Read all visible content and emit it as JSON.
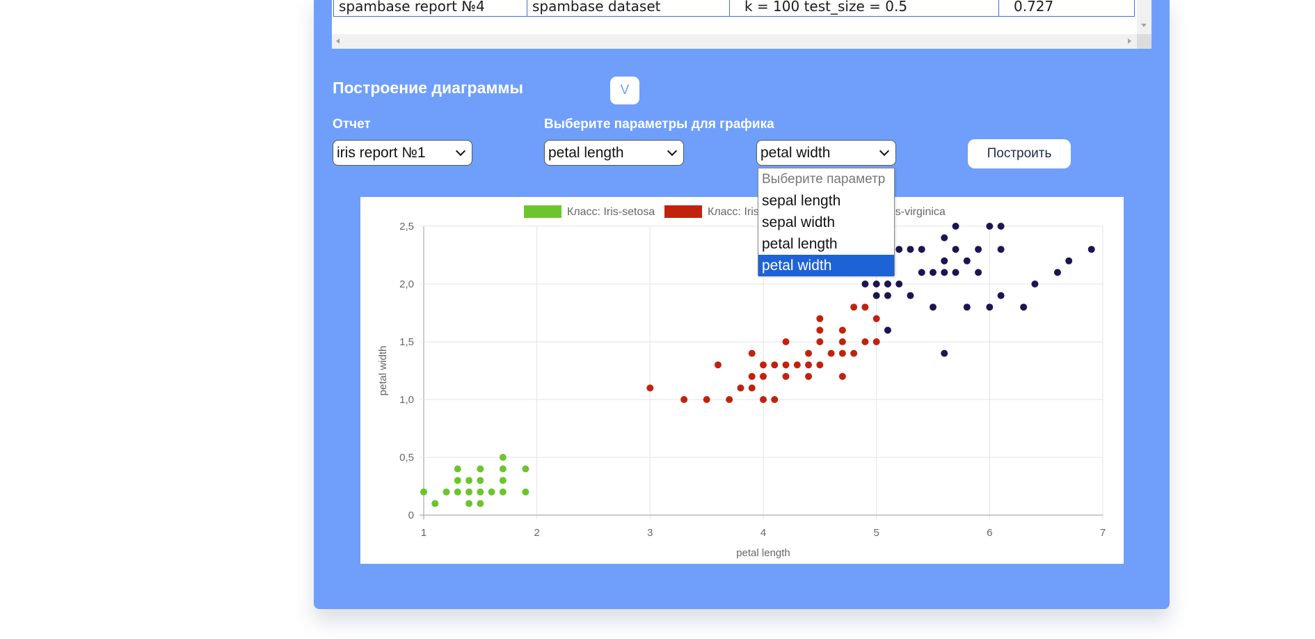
{
  "table": {
    "row": [
      "spambase report №4",
      "spambase dataset",
      "k = 100 test_size = 0.5",
      "0.727"
    ]
  },
  "plot_section": {
    "title": "Построение диаграммы",
    "toggle_label": "V",
    "report_label": "Отчет",
    "params_label": "Выберите параметры для графика",
    "report_select": "iris report №1",
    "x_select": "petal length",
    "y_select": "petal width",
    "build_button": "Построить"
  },
  "dropdown": {
    "options": [
      "Выберите параметр",
      "sepal length",
      "sepal width",
      "petal length",
      "petal width"
    ],
    "selected_index": 4
  },
  "colors": {
    "panel": "#6f9ffa",
    "setosa": "#6cc52c",
    "versicolor": "#c1220e",
    "virginica": "#1b1551"
  },
  "chart_data": {
    "type": "scatter",
    "xlabel": "petal length",
    "ylabel": "petal width",
    "xlim": [
      1,
      7
    ],
    "ylim": [
      0,
      2.5
    ],
    "x_ticks": [
      "1",
      "2",
      "3",
      "4",
      "5",
      "6",
      "7"
    ],
    "y_ticks": [
      "0",
      "0,5",
      "1,0",
      "1,5",
      "2,0",
      "2,5"
    ],
    "grid": true,
    "legend_position": "top",
    "series": [
      {
        "name": "Класс: Iris-setosa",
        "color": "#6cc52c",
        "points": [
          [
            1.0,
            0.2
          ],
          [
            1.1,
            0.1
          ],
          [
            1.2,
            0.2
          ],
          [
            1.3,
            0.2
          ],
          [
            1.3,
            0.3
          ],
          [
            1.3,
            0.4
          ],
          [
            1.4,
            0.1
          ],
          [
            1.4,
            0.2
          ],
          [
            1.4,
            0.3
          ],
          [
            1.5,
            0.1
          ],
          [
            1.5,
            0.2
          ],
          [
            1.5,
            0.3
          ],
          [
            1.5,
            0.4
          ],
          [
            1.6,
            0.2
          ],
          [
            1.7,
            0.2
          ],
          [
            1.7,
            0.3
          ],
          [
            1.7,
            0.4
          ],
          [
            1.7,
            0.5
          ],
          [
            1.9,
            0.2
          ],
          [
            1.9,
            0.4
          ]
        ]
      },
      {
        "name": "Класс: Iris-versicolor",
        "color": "#c1220e",
        "points": [
          [
            3.0,
            1.1
          ],
          [
            3.3,
            1.0
          ],
          [
            3.5,
            1.0
          ],
          [
            3.6,
            1.3
          ],
          [
            3.7,
            1.0
          ],
          [
            3.8,
            1.1
          ],
          [
            3.9,
            1.1
          ],
          [
            3.9,
            1.2
          ],
          [
            3.9,
            1.4
          ],
          [
            4.0,
            1.0
          ],
          [
            4.0,
            1.2
          ],
          [
            4.0,
            1.3
          ],
          [
            4.1,
            1.0
          ],
          [
            4.1,
            1.3
          ],
          [
            4.2,
            1.2
          ],
          [
            4.2,
            1.3
          ],
          [
            4.2,
            1.5
          ],
          [
            4.3,
            1.3
          ],
          [
            4.4,
            1.2
          ],
          [
            4.4,
            1.3
          ],
          [
            4.4,
            1.4
          ],
          [
            4.5,
            1.3
          ],
          [
            4.5,
            1.5
          ],
          [
            4.5,
            1.6
          ],
          [
            4.5,
            1.7
          ],
          [
            4.6,
            1.4
          ],
          [
            4.7,
            1.2
          ],
          [
            4.7,
            1.4
          ],
          [
            4.7,
            1.5
          ],
          [
            4.7,
            1.6
          ],
          [
            4.8,
            1.4
          ],
          [
            4.8,
            1.8
          ],
          [
            4.9,
            1.5
          ],
          [
            4.9,
            1.8
          ],
          [
            5.0,
            1.5
          ],
          [
            5.0,
            1.7
          ],
          [
            5.1,
            2.0
          ]
        ]
      },
      {
        "name": "Класс: Iris-virginica",
        "color": "#1b1551",
        "points": [
          [
            4.9,
            2.0
          ],
          [
            5.0,
            1.9
          ],
          [
            5.0,
            2.0
          ],
          [
            5.1,
            1.6
          ],
          [
            5.1,
            1.9
          ],
          [
            5.1,
            2.0
          ],
          [
            5.1,
            2.3
          ],
          [
            5.2,
            2.0
          ],
          [
            5.2,
            2.3
          ],
          [
            5.3,
            1.9
          ],
          [
            5.3,
            2.3
          ],
          [
            5.4,
            2.1
          ],
          [
            5.4,
            2.3
          ],
          [
            5.5,
            1.8
          ],
          [
            5.5,
            2.1
          ],
          [
            5.6,
            1.4
          ],
          [
            5.6,
            2.1
          ],
          [
            5.6,
            2.2
          ],
          [
            5.6,
            2.4
          ],
          [
            5.7,
            2.1
          ],
          [
            5.7,
            2.3
          ],
          [
            5.7,
            2.5
          ],
          [
            5.8,
            1.8
          ],
          [
            5.8,
            2.2
          ],
          [
            5.9,
            2.1
          ],
          [
            5.9,
            2.3
          ],
          [
            6.0,
            1.8
          ],
          [
            6.0,
            2.5
          ],
          [
            6.1,
            1.9
          ],
          [
            6.1,
            2.3
          ],
          [
            6.1,
            2.5
          ],
          [
            6.3,
            1.8
          ],
          [
            6.4,
            2.0
          ],
          [
            6.6,
            2.1
          ],
          [
            6.7,
            2.2
          ],
          [
            6.9,
            2.3
          ]
        ]
      }
    ]
  }
}
